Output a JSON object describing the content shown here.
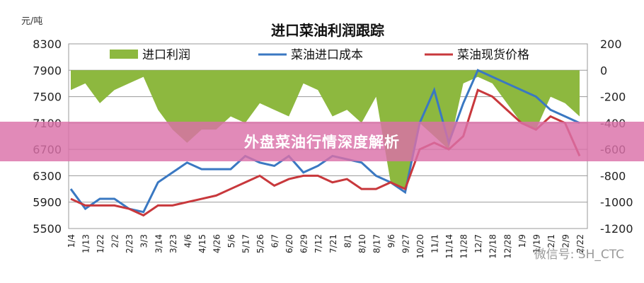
{
  "chart_data": {
    "type": "line",
    "title": "进口菜油利润跟踪",
    "ylabel": "元/吨",
    "ylim": [
      5500,
      8300
    ],
    "yticks": [
      5500,
      5900,
      6300,
      6700,
      7100,
      7500,
      7900,
      8300
    ],
    "y2lim": [
      -1200,
      200
    ],
    "y2ticks": [
      -1200,
      -1000,
      -800,
      -600,
      -400,
      -200,
      0,
      200
    ],
    "grid": true,
    "legend": "top",
    "categories": [
      "1/4",
      "1/13",
      "1/22",
      "2/2",
      "2/23",
      "3/3",
      "3/14",
      "3/23",
      "4/6",
      "4/15",
      "4/26",
      "5/6",
      "5/17",
      "5/26",
      "6/7",
      "6/20",
      "6/29",
      "7/12",
      "7/21",
      "8/1",
      "8/10",
      "8/17",
      "9/6",
      "9/27",
      "10/20",
      "11/1",
      "11/14",
      "11/28",
      "12/7",
      "12/18",
      "12/28",
      "1/9",
      "1/19",
      "2/1",
      "2/9",
      "2/22"
    ],
    "series": [
      {
        "name": "进口利润",
        "type": "area",
        "axis": "right",
        "color": "#8db83f",
        "values": [
          -150,
          -100,
          -250,
          -150,
          -100,
          -50,
          -300,
          -450,
          -550,
          -450,
          -450,
          -350,
          -400,
          -250,
          -300,
          -350,
          -100,
          -150,
          -350,
          -300,
          -400,
          -200,
          -850,
          -900,
          -400,
          -500,
          -600,
          -100,
          -50,
          -100,
          -250,
          -400,
          -450,
          -200,
          -250,
          -350
        ]
      },
      {
        "name": "菜油进口成本",
        "type": "line",
        "axis": "left",
        "color": "#3a78c2",
        "values": [
          6100,
          5800,
          5950,
          5950,
          5800,
          5750,
          6200,
          6350,
          6500,
          6400,
          6400,
          6400,
          6600,
          6500,
          6450,
          6600,
          6350,
          6450,
          6600,
          6550,
          6500,
          6300,
          6200,
          6050,
          7100,
          7600,
          6800,
          7400,
          7900,
          7800,
          7700,
          7600,
          7500,
          7300,
          7200,
          7100
        ]
      },
      {
        "name": "菜油现货价格",
        "type": "line",
        "axis": "left",
        "color": "#c8383c",
        "values": [
          5950,
          5850,
          5850,
          5850,
          5800,
          5700,
          5850,
          5850,
          5900,
          5950,
          6000,
          6100,
          6200,
          6300,
          6150,
          6250,
          6300,
          6300,
          6200,
          6250,
          6100,
          6100,
          6200,
          6100,
          6700,
          6800,
          6700,
          6900,
          7600,
          7500,
          7300,
          7100,
          7000,
          7200,
          7100,
          6600
        ]
      }
    ]
  },
  "banner": {
    "text": "外盘菜油行情深度解析"
  },
  "watermark": {
    "text": "微信号: SH_CTC"
  }
}
